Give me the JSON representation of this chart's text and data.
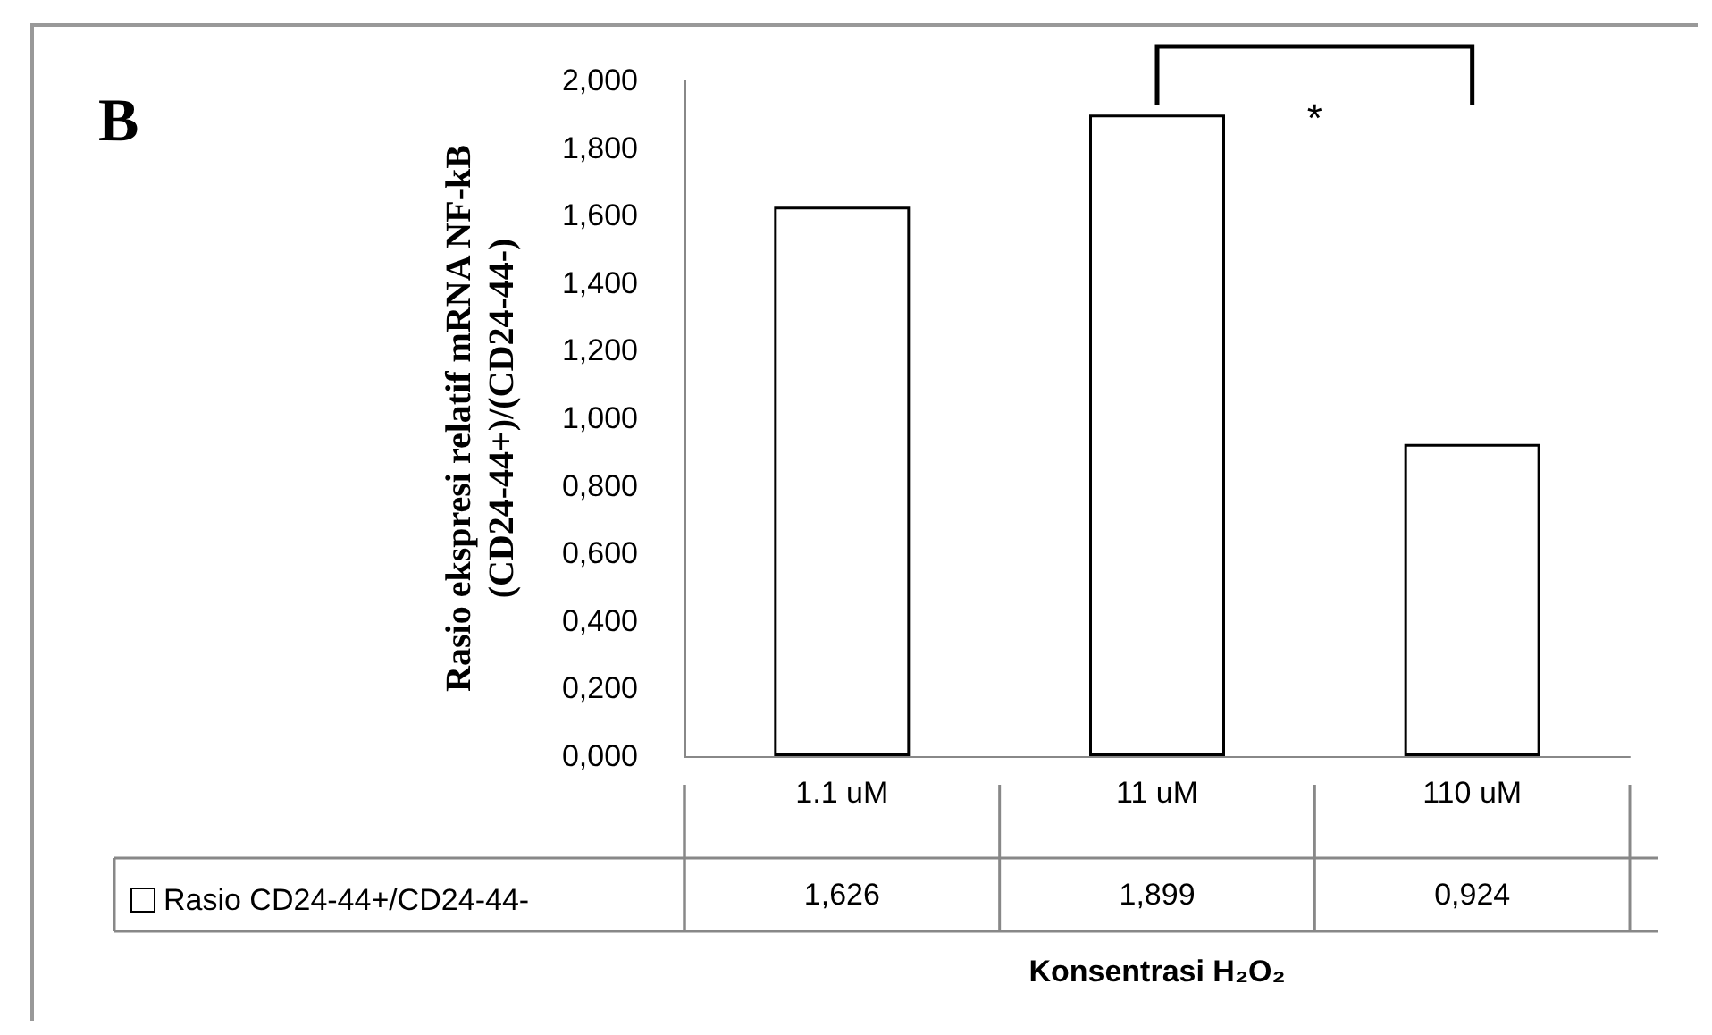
{
  "chart_data": {
    "type": "bar",
    "title": "B",
    "ylabel": "Rasio ekspresi relatif mRNA NF-kB\n(CD24-44+)/(CD24-44-)",
    "xlabel": "Konsentrasi H₂O₂",
    "categories": [
      "1.1 uM",
      "11 uM",
      "110 uM"
    ],
    "series": [
      {
        "name": "Rasio CD24-44+/CD24-44-",
        "color": "#ffffff",
        "values": [
          1.626,
          1.899,
          0.924
        ],
        "value_labels": [
          "1,626",
          "1,899",
          "0,924"
        ]
      }
    ],
    "ylim": [
      0,
      2
    ],
    "yticks": [
      {
        "value": 0,
        "label": "0,000"
      },
      {
        "value": 0.2,
        "label": "0,200"
      },
      {
        "value": 0.4,
        "label": "0,400"
      },
      {
        "value": 0.6,
        "label": "0,600"
      },
      {
        "value": 0.8,
        "label": "0,800"
      },
      {
        "value": 1,
        "label": "1,000"
      },
      {
        "value": 1.2,
        "label": "1,200"
      },
      {
        "value": 1.4,
        "label": "1,400"
      },
      {
        "value": 1.6,
        "label": "1,600"
      },
      {
        "value": 1.8,
        "label": "1,800"
      },
      {
        "value": 2,
        "label": "2,000"
      }
    ],
    "grid": false,
    "legend": "bottom left",
    "annotations": [
      "*"
    ]
  }
}
